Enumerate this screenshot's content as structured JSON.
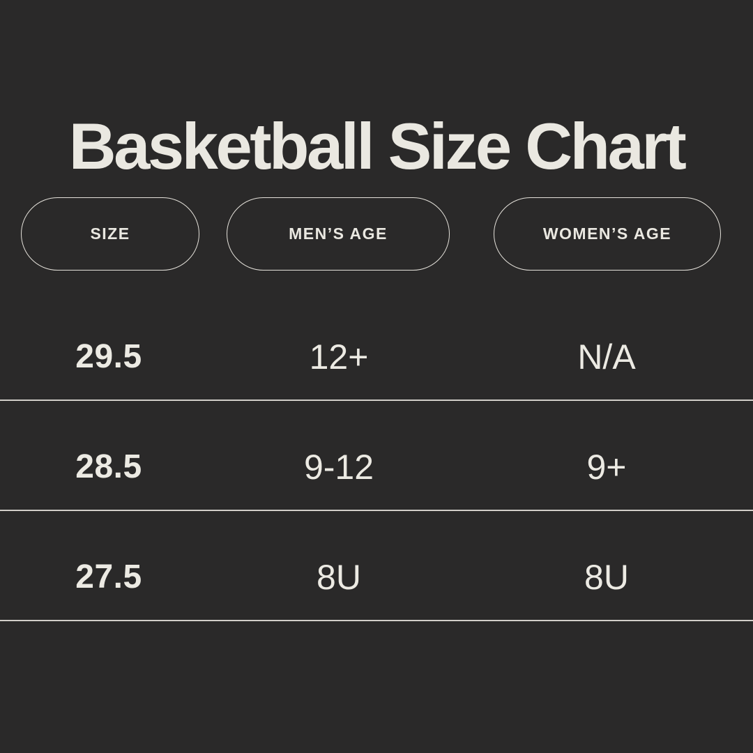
{
  "title": "Basketball Size Chart",
  "colors": {
    "background": "#2a2929",
    "text": "#eae8e1",
    "pill_border": "#e5e2db",
    "divider": "#d2cfc9"
  },
  "table": {
    "headers": [
      {
        "label": "SIZE"
      },
      {
        "label": "MEN’S AGE"
      },
      {
        "label": "WOMEN’S AGE"
      }
    ],
    "rows": [
      {
        "size": "29.5",
        "mens_age": "12+",
        "womens_age": "N/A"
      },
      {
        "size": "28.5",
        "mens_age": "9-12",
        "womens_age": "9+"
      },
      {
        "size": "27.5",
        "mens_age": "8U",
        "womens_age": "8U"
      }
    ]
  },
  "chart_data": {
    "type": "table",
    "title": "Basketball Size Chart",
    "columns": [
      "SIZE",
      "MEN’S AGE",
      "WOMEN’S AGE"
    ],
    "rows": [
      [
        "29.5",
        "12+",
        "N/A"
      ],
      [
        "28.5",
        "9-12",
        "9+"
      ],
      [
        "27.5",
        "8U",
        "8U"
      ]
    ],
    "legend_position": "none",
    "grid": "horizontal-dividers-only"
  }
}
